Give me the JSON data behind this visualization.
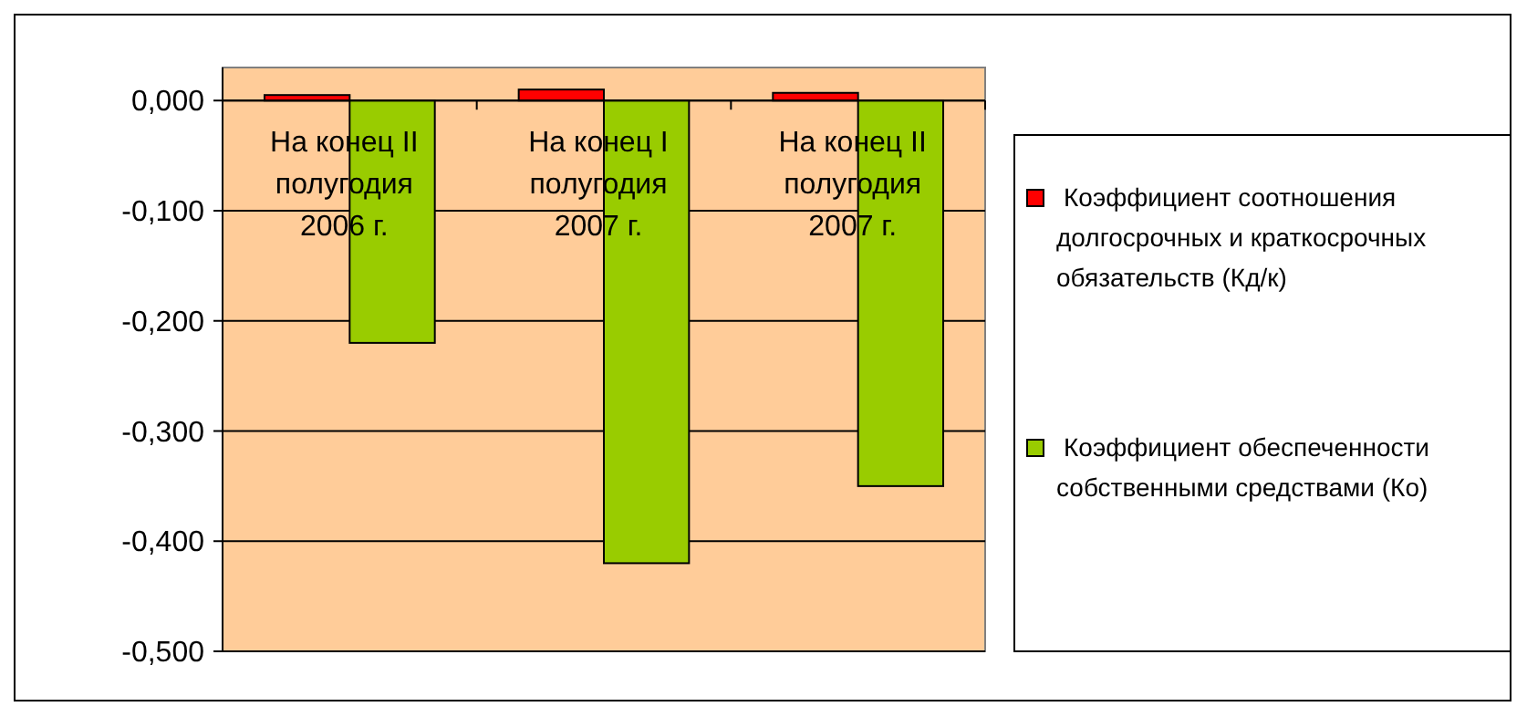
{
  "chart_data": {
    "type": "bar",
    "categories": [
      "На конец II\nполугодия\n2006 г.",
      "На конец I\nполугодия\n2007 г.",
      "На конец II\nполугодия\n2007 г."
    ],
    "series": [
      {
        "name": "Коэффициент соотношения долгосрочных и краткосрочных обязательств (Кд/к)",
        "color": "#ff0000",
        "values": [
          0.005,
          0.01,
          0.007
        ]
      },
      {
        "name": "Коэффициент обеспеченности собственными средствами (Ко)",
        "color": "#99cc00",
        "values": [
          -0.22,
          -0.42,
          -0.35
        ]
      }
    ],
    "ylim": [
      -0.5,
      0.03
    ],
    "yticks": [
      {
        "value": 0,
        "label": "0,000"
      },
      {
        "value": -0.1,
        "label": "-0,100"
      },
      {
        "value": -0.2,
        "label": "-0,200"
      },
      {
        "value": -0.3,
        "label": "-0,300"
      },
      {
        "value": -0.4,
        "label": "-0,400"
      },
      {
        "value": -0.5,
        "label": "-0,500"
      }
    ],
    "grid": "y",
    "legend": "right"
  }
}
